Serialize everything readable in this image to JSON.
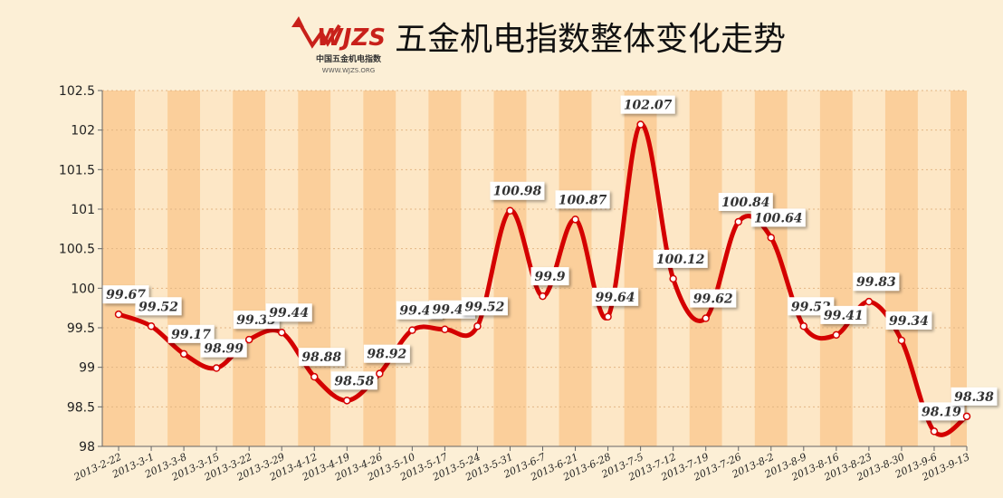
{
  "logo": {
    "mark": "WJZS",
    "name": "中国五金机电指数",
    "url": "WWW.WJZS.ORG"
  },
  "chart_data": {
    "type": "line",
    "title": "五金机电指数整体变化走势",
    "categories": [
      "2013-2-22",
      "2013-3-1",
      "2013-3-8",
      "2013-3-15",
      "2013-3-22",
      "2013-3-29",
      "2013-4-12",
      "2013-4-19",
      "2013-4-26",
      "2013-5-10",
      "2013-5-17",
      "2013-5-24",
      "2013-5-31",
      "2013-6-7",
      "2013-6-21",
      "2013-6-28",
      "2013-7-5",
      "2013-7-12",
      "2013-7-19",
      "2013-7-26",
      "2013-8-2",
      "2013-8-9",
      "2013-8-16",
      "2013-8-23",
      "2013-8-30",
      "2013-9-6",
      "2013-9-13"
    ],
    "values": [
      99.67,
      99.52,
      99.17,
      98.99,
      99.35,
      99.44,
      98.88,
      98.58,
      98.92,
      99.47,
      99.48,
      99.52,
      100.98,
      99.9,
      100.87,
      99.64,
      102.07,
      100.12,
      99.62,
      100.84,
      100.64,
      99.52,
      99.41,
      99.83,
      99.34,
      98.19,
      98.38
    ],
    "color": "#d40000",
    "ylim": [
      98,
      102.5
    ],
    "yticks": [
      98,
      98.5,
      99,
      99.5,
      100,
      100.5,
      101,
      101.5,
      102,
      102.5
    ]
  }
}
